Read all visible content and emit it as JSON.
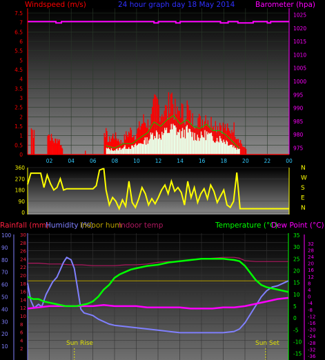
{
  "colors": {
    "wind": "#ff0000",
    "gust": "#00cc00",
    "avg": "#e8ffe8",
    "pressure": "#ff00ff",
    "direction": "#ffff00",
    "rain": "#ff2040",
    "humidity": "#8080ff",
    "indoor_hum": "#b8a000",
    "indoor_temp": "#b01860",
    "temperature": "#00ff00",
    "dew": "#ff00ff",
    "hours": "#33ccff"
  },
  "chart_data": [
    {
      "type": "bar",
      "title": "24 hour graph day 18 May 2014",
      "left_label": "Windspeed (m/s)",
      "right_label": "Barometer (hpa)",
      "left_ticks": [
        "0",
        "0.5",
        "1",
        "1.5",
        "2",
        "2.5",
        "3",
        "3.5",
        "4",
        "4.5",
        "5",
        "5.5",
        "6",
        "6.5",
        "7",
        "7.5"
      ],
      "right_ticks": [
        "975",
        "980",
        "985",
        "990",
        "995",
        "1000",
        "1005",
        "1010",
        "1015",
        "1020",
        "1025"
      ],
      "x_ticks": [
        "02",
        "04",
        "06",
        "08",
        "10",
        "12",
        "14",
        "16",
        "18",
        "20",
        "22",
        "00"
      ],
      "wind_max": [
        [
          0.3,
          1.8
        ],
        [
          0.6,
          1.3
        ],
        [
          1.8,
          1.5
        ],
        [
          2.4,
          0.9
        ],
        [
          2.8,
          1.1
        ],
        [
          3.2,
          0.3
        ],
        [
          5.3,
          0.2
        ],
        [
          7.0,
          1.8
        ],
        [
          7.4,
          0.9
        ],
        [
          7.8,
          1.3
        ],
        [
          8.2,
          1.1
        ],
        [
          8.6,
          0.8
        ],
        [
          9.0,
          1.3
        ],
        [
          9.4,
          1.6
        ],
        [
          9.8,
          1.3
        ],
        [
          10.2,
          1.8
        ],
        [
          10.6,
          2.3
        ],
        [
          11.0,
          2.1
        ],
        [
          11.3,
          2.4
        ],
        [
          11.6,
          3.3
        ],
        [
          11.9,
          3.5
        ],
        [
          12.2,
          2.9
        ],
        [
          12.5,
          3.2
        ],
        [
          12.8,
          2.8
        ],
        [
          13.1,
          4.5
        ],
        [
          13.4,
          3.1
        ],
        [
          13.7,
          2.7
        ],
        [
          14.0,
          3.2
        ],
        [
          14.3,
          2.6
        ],
        [
          14.6,
          3.3
        ],
        [
          14.9,
          2.5
        ],
        [
          15.2,
          2.3
        ],
        [
          15.5,
          2.6
        ],
        [
          15.8,
          2.2
        ],
        [
          16.1,
          2.5
        ],
        [
          16.4,
          2.8
        ],
        [
          16.7,
          2.1
        ],
        [
          17.0,
          2.4
        ],
        [
          17.3,
          2.0
        ],
        [
          17.6,
          2.2
        ],
        [
          17.9,
          1.9
        ],
        [
          18.2,
          1.8
        ],
        [
          18.5,
          1.5
        ],
        [
          18.8,
          2.0
        ],
        [
          19.1,
          1.4
        ],
        [
          19.4,
          1.1
        ],
        [
          19.7,
          0.6
        ],
        [
          20.0,
          0.3
        ]
      ],
      "wind_avg": [
        [
          7.2,
          0.4
        ],
        [
          8.0,
          0.3
        ],
        [
          8.8,
          0.5
        ],
        [
          9.6,
          0.5
        ],
        [
          10.4,
          0.8
        ],
        [
          11.0,
          1.0
        ],
        [
          11.6,
          1.5
        ],
        [
          12.2,
          1.3
        ],
        [
          12.8,
          1.6
        ],
        [
          13.4,
          1.8
        ],
        [
          14.0,
          1.4
        ],
        [
          14.6,
          1.6
        ],
        [
          15.2,
          1.3
        ],
        [
          15.8,
          1.2
        ],
        [
          16.4,
          1.4
        ],
        [
          17.0,
          1.1
        ],
        [
          17.6,
          1.1
        ],
        [
          18.2,
          0.9
        ],
        [
          18.8,
          0.6
        ],
        [
          19.4,
          0.3
        ]
      ],
      "pressure": [
        [
          0,
          1022.5
        ],
        [
          2.6,
          1022.5
        ],
        [
          2.6,
          1022
        ],
        [
          3.1,
          1022
        ],
        [
          3.1,
          1022.5
        ],
        [
          11.6,
          1022.5
        ],
        [
          11.6,
          1022
        ],
        [
          12.0,
          1022
        ],
        [
          12.0,
          1022.5
        ],
        [
          13.6,
          1022.5
        ],
        [
          13.6,
          1022
        ],
        [
          14.0,
          1022
        ],
        [
          14.0,
          1022.5
        ],
        [
          17.7,
          1022.5
        ],
        [
          17.7,
          1022
        ],
        [
          18.4,
          1022
        ],
        [
          18.4,
          1022.5
        ],
        [
          19.3,
          1022.5
        ],
        [
          19.3,
          1022
        ],
        [
          20.7,
          1022
        ],
        [
          20.7,
          1022.5
        ],
        [
          22.0,
          1022.5
        ],
        [
          22.0,
          1022
        ],
        [
          22.3,
          1022
        ],
        [
          22.3,
          1022.5
        ],
        [
          24.0,
          1022.5
        ]
      ]
    },
    {
      "type": "line",
      "right_label": "N W S E N",
      "left_ticks": [
        "0",
        "90",
        "180",
        "270",
        "360"
      ],
      "direction": [
        [
          0,
          225
        ],
        [
          0.3,
          315
        ],
        [
          0.6,
          315
        ],
        [
          1.2,
          315
        ],
        [
          1.5,
          200
        ],
        [
          1.8,
          300
        ],
        [
          2.1,
          230
        ],
        [
          2.4,
          180
        ],
        [
          2.7,
          200
        ],
        [
          3.0,
          270
        ],
        [
          3.3,
          180
        ],
        [
          3.6,
          190
        ],
        [
          6.0,
          190
        ],
        [
          6.3,
          215
        ],
        [
          6.6,
          340
        ],
        [
          6.9,
          350
        ],
        [
          7.0,
          350
        ],
        [
          7.2,
          180
        ],
        [
          7.5,
          60
        ],
        [
          7.8,
          120
        ],
        [
          8.1,
          90
        ],
        [
          8.4,
          30
        ],
        [
          8.7,
          100
        ],
        [
          9.0,
          50
        ],
        [
          9.3,
          250
        ],
        [
          9.6,
          80
        ],
        [
          9.9,
          40
        ],
        [
          10.2,
          110
        ],
        [
          10.5,
          200
        ],
        [
          10.8,
          150
        ],
        [
          11.1,
          60
        ],
        [
          11.4,
          110
        ],
        [
          11.7,
          70
        ],
        [
          12.0,
          120
        ],
        [
          12.3,
          180
        ],
        [
          12.6,
          220
        ],
        [
          12.9,
          150
        ],
        [
          13.2,
          250
        ],
        [
          13.5,
          170
        ],
        [
          13.8,
          200
        ],
        [
          14.1,
          160
        ],
        [
          14.4,
          60
        ],
        [
          14.7,
          250
        ],
        [
          15.0,
          120
        ],
        [
          15.3,
          200
        ],
        [
          15.6,
          80
        ],
        [
          15.9,
          150
        ],
        [
          16.2,
          190
        ],
        [
          16.5,
          110
        ],
        [
          16.8,
          220
        ],
        [
          17.1,
          170
        ],
        [
          17.4,
          80
        ],
        [
          17.7,
          130
        ],
        [
          18.0,
          180
        ],
        [
          18.3,
          60
        ],
        [
          18.6,
          40
        ],
        [
          18.9,
          90
        ],
        [
          19.2,
          320
        ],
        [
          19.5,
          30
        ],
        [
          20.0,
          30
        ],
        [
          24.0,
          30
        ]
      ]
    },
    {
      "type": "line",
      "left_label_rain": "Rainfall (mm)",
      "left_label_humidity": "Humidity (%)",
      "label_indoor_hum": "Indoor hum",
      "label_indoor_temp": "Indoor temp",
      "right_label_temp": "Temperature (°C)",
      "right_label_dew": "Dew Point (°C)",
      "rain_ticks": [
        "2",
        "4",
        "6",
        "8",
        "10",
        "12",
        "14",
        "16",
        "18",
        "20",
        "22",
        "24",
        "26",
        "28",
        "30"
      ],
      "humidity_ticks": [
        "10",
        "20",
        "30",
        "40",
        "50",
        "60",
        "70",
        "80",
        "90",
        "100"
      ],
      "temp_ticks": [
        "-15",
        "-10",
        "-5",
        "0",
        "5",
        "10",
        "15",
        "20",
        "25",
        "30",
        "35"
      ],
      "dew_ticks": [
        "-36",
        "-32",
        "-28",
        "-24",
        "-20",
        "-16",
        "-12",
        "-8",
        "-4",
        "0",
        "4",
        "8",
        "12",
        "16",
        "20",
        "24",
        "28",
        "32"
      ],
      "annotation_sunrise": "Sun Rise",
      "annotation_sunset": "Sun Set",
      "sunrise_hour": 4.3,
      "sunset_hour": 21.9,
      "temperature": [
        [
          0,
          9
        ],
        [
          0.5,
          8
        ],
        [
          1.0,
          8
        ],
        [
          1.5,
          7
        ],
        [
          2.0,
          6.5
        ],
        [
          2.5,
          6
        ],
        [
          3.0,
          5.5
        ],
        [
          3.5,
          5
        ],
        [
          4.0,
          5
        ],
        [
          4.5,
          5
        ],
        [
          5.0,
          5.5
        ],
        [
          5.5,
          6
        ],
        [
          6.0,
          7
        ],
        [
          6.5,
          9
        ],
        [
          7.0,
          12
        ],
        [
          7.5,
          14
        ],
        [
          8.0,
          17
        ],
        [
          8.5,
          18.5
        ],
        [
          9.0,
          19.5
        ],
        [
          9.5,
          20.5
        ],
        [
          10.0,
          21
        ],
        [
          11.0,
          22
        ],
        [
          12.0,
          22.5
        ],
        [
          13.0,
          23.5
        ],
        [
          14.0,
          24
        ],
        [
          15.0,
          24.5
        ],
        [
          16.0,
          25
        ],
        [
          17.0,
          25
        ],
        [
          18.0,
          25
        ],
        [
          19.0,
          24.5
        ],
        [
          19.5,
          24
        ],
        [
          20.0,
          22
        ],
        [
          20.5,
          19
        ],
        [
          21.0,
          16
        ],
        [
          21.5,
          14
        ],
        [
          22.0,
          13
        ],
        [
          23.0,
          12
        ],
        [
          24.0,
          11
        ]
      ],
      "humidity": [
        [
          0,
          61
        ],
        [
          0.3,
          47
        ],
        [
          0.6,
          41
        ],
        [
          1.0,
          44
        ],
        [
          1.3,
          42
        ],
        [
          1.7,
          52
        ],
        [
          2.0,
          57
        ],
        [
          2.3,
          62
        ],
        [
          2.7,
          66
        ],
        [
          3.0,
          72
        ],
        [
          3.3,
          78
        ],
        [
          3.6,
          82
        ],
        [
          4.0,
          80
        ],
        [
          4.3,
          73
        ],
        [
          4.6,
          57
        ],
        [
          4.9,
          40
        ],
        [
          5.2,
          37
        ],
        [
          5.6,
          36
        ],
        [
          6.0,
          35
        ],
        [
          6.5,
          32
        ],
        [
          7.0,
          30
        ],
        [
          7.5,
          28
        ],
        [
          8.0,
          27
        ],
        [
          9.0,
          26
        ],
        [
          10.0,
          25
        ],
        [
          11.0,
          24
        ],
        [
          12.0,
          23
        ],
        [
          13.0,
          22
        ],
        [
          14.0,
          21
        ],
        [
          16.0,
          21
        ],
        [
          18.0,
          21
        ],
        [
          19.0,
          22
        ],
        [
          19.5,
          24
        ],
        [
          20.0,
          29
        ],
        [
          20.5,
          36
        ],
        [
          21.0,
          43
        ],
        [
          21.5,
          50
        ],
        [
          22.0,
          55
        ],
        [
          22.5,
          58
        ],
        [
          23.0,
          59
        ],
        [
          23.5,
          61
        ],
        [
          24.0,
          63
        ]
      ],
      "dew_point": [
        [
          0,
          4
        ],
        [
          1.0,
          4.5
        ],
        [
          2.0,
          5
        ],
        [
          3.0,
          5
        ],
        [
          4.0,
          5
        ],
        [
          5.0,
          5
        ],
        [
          6.0,
          5
        ],
        [
          7.0,
          5.5
        ],
        [
          8.0,
          5
        ],
        [
          9.0,
          5
        ],
        [
          10.0,
          5
        ],
        [
          11.0,
          4.5
        ],
        [
          12.0,
          4.5
        ],
        [
          13.0,
          4.5
        ],
        [
          14.0,
          4.5
        ],
        [
          15.0,
          4
        ],
        [
          16.0,
          4
        ],
        [
          17.0,
          4
        ],
        [
          18.0,
          4.5
        ],
        [
          19.0,
          4.5
        ],
        [
          20.0,
          5
        ],
        [
          21.0,
          6
        ],
        [
          22.0,
          7
        ],
        [
          23.0,
          8
        ],
        [
          24.0,
          8.5
        ]
      ],
      "indoor_hum": [
        [
          0,
          18.6
        ],
        [
          24.0,
          18.6
        ]
      ],
      "indoor_temp": [
        [
          0,
          20
        ],
        [
          1,
          20
        ],
        [
          2,
          19.5
        ],
        [
          3,
          19.5
        ],
        [
          4,
          19
        ],
        [
          5,
          19
        ],
        [
          6,
          18.5
        ],
        [
          7,
          18.5
        ],
        [
          8,
          18.5
        ],
        [
          9,
          19
        ],
        [
          10,
          19
        ],
        [
          11,
          19.5
        ],
        [
          12,
          20.5
        ],
        [
          13,
          21
        ],
        [
          14,
          21
        ],
        [
          15,
          22
        ],
        [
          16,
          22.5
        ],
        [
          17,
          23
        ],
        [
          18,
          23.5
        ],
        [
          19,
          23.5
        ],
        [
          19.5,
          23
        ],
        [
          20,
          21.5
        ],
        [
          21,
          21
        ],
        [
          22,
          21
        ],
        [
          23,
          21
        ],
        [
          24,
          21
        ]
      ]
    }
  ]
}
